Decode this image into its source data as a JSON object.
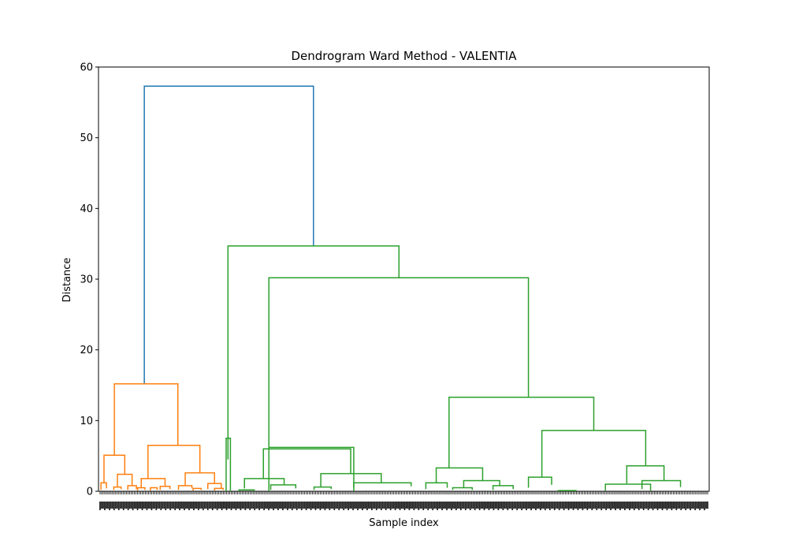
{
  "chart_data": {
    "type": "dendrogram",
    "title": "Dendrogram Ward Method - VALENTIA",
    "xlabel": "Sample index",
    "ylabel": "Distance",
    "ylim": [
      0,
      60
    ],
    "yticks": [
      "0",
      "10",
      "20",
      "30",
      "40",
      "50",
      "60"
    ],
    "grid": false,
    "colors": {
      "root": "#1f77b4",
      "cluster1": "#ff7f0e",
      "cluster2": "#2ca02c",
      "axis": "#000000"
    },
    "clusters": [
      {
        "name": "cluster1",
        "color": "#ff7f0e",
        "height": 15.2
      },
      {
        "name": "cluster2",
        "color": "#2ca02c",
        "height": 34.7
      }
    ],
    "merges": [
      {
        "color": "#1f77b4",
        "x_left": 7.5,
        "x_right": 35.2,
        "h_left": 15.2,
        "h_right": 34.7,
        "height": 57.3
      },
      {
        "color": "#2ca02c",
        "x_left": 21.2,
        "x_right": 49.2,
        "h_left": 4.5,
        "h_right": 30.2,
        "height": 34.7
      },
      {
        "color": "#2ca02c",
        "x_left": 27.9,
        "x_right": 70.4,
        "h_left": 6.2,
        "h_right": 13.3,
        "height": 30.2
      },
      {
        "color": "#2ca02c",
        "x_left": 57.4,
        "x_right": 81.1,
        "h_left": 3.3,
        "h_right": 8.6,
        "height": 13.3
      },
      {
        "color": "#2ca02c",
        "x_left": 72.6,
        "x_right": 89.6,
        "h_left": 2.0,
        "h_right": 3.6,
        "height": 8.6
      },
      {
        "color": "#2ca02c",
        "x_left": 27.9,
        "x_right": 41.8,
        "h_left": 0,
        "h_right": 0,
        "height": 6.2
      },
      {
        "color": "#2ca02c",
        "x_left": 27.0,
        "x_right": 41.3,
        "h_left": 1.8,
        "h_right": 2.5,
        "height": 6.0
      },
      {
        "color": "#2ca02c",
        "x_left": 55.3,
        "x_right": 62.9,
        "h_left": 1.2,
        "h_right": 1.5,
        "height": 3.3
      },
      {
        "color": "#2ca02c",
        "x_left": 86.5,
        "x_right": 92.6,
        "h_left": 1.1,
        "h_right": 1.5,
        "height": 3.6
      },
      {
        "color": "#2ca02c",
        "x_left": 36.4,
        "x_right": 46.3,
        "h_left": 0.6,
        "h_right": 1.2,
        "height": 2.5
      },
      {
        "color": "#2ca02c",
        "x_left": 70.4,
        "x_right": 74.2,
        "h_left": 0.5,
        "h_right": 0.9,
        "height": 2.0
      },
      {
        "color": "#2ca02c",
        "x_left": 23.9,
        "x_right": 30.4,
        "h_left": 0.4,
        "h_right": 0.9,
        "height": 1.8
      },
      {
        "color": "#2ca02c",
        "x_left": 41.8,
        "x_right": 51.2,
        "h_left": 0.5,
        "h_right": 0.7,
        "height": 1.2
      },
      {
        "color": "#2ca02c",
        "x_left": 83.0,
        "x_right": 90.4,
        "h_left": 0.1,
        "h_right": 0.1,
        "height": 1.0
      },
      {
        "color": "#2ca02c",
        "x_left": 59.8,
        "x_right": 65.7,
        "h_left": 0.5,
        "h_right": 0.8,
        "height": 1.5
      },
      {
        "color": "#2ca02c",
        "x_left": 89.0,
        "x_right": 95.3,
        "h_left": 0.3,
        "h_right": 0.6,
        "height": 1.5
      },
      {
        "color": "#2ca02c",
        "x_left": 53.6,
        "x_right": 57.1,
        "h_left": 0.3,
        "h_right": 0.5,
        "height": 1.2
      },
      {
        "color": "#2ca02c",
        "x_left": 28.2,
        "x_right": 32.3,
        "h_left": 0.2,
        "h_right": 0.4,
        "height": 0.9
      },
      {
        "color": "#2ca02c",
        "x_left": 64.6,
        "x_right": 67.9,
        "h_left": 0.2,
        "h_right": 0.3,
        "height": 0.8
      },
      {
        "color": "#2ca02c",
        "x_left": 35.3,
        "x_right": 38.1,
        "h_left": 0.2,
        "h_right": 0.3,
        "height": 0.6
      },
      {
        "color": "#2ca02c",
        "x_left": 58.0,
        "x_right": 61.2,
        "h_left": 0.2,
        "h_right": 0.2,
        "height": 0.5
      },
      {
        "color": "#2ca02c",
        "x_left": 75.2,
        "x_right": 78.3,
        "h_left": 0.1,
        "h_right": 0.1,
        "height": 0.1
      },
      {
        "color": "#2ca02c",
        "x_left": 23.0,
        "x_right": 25.5,
        "h_left": 0,
        "h_right": 0,
        "height": 0.2
      },
      {
        "color": "#2ca02c",
        "x_left": 20.9,
        "x_right": 21.6,
        "h_left": 0,
        "h_right": 0,
        "height": 7.5
      },
      {
        "color": "#ff7f0e",
        "x_left": 2.6,
        "x_right": 13.0,
        "h_left": 5.1,
        "h_right": 6.5,
        "height": 15.2
      },
      {
        "color": "#ff7f0e",
        "x_left": 0.9,
        "x_right": 4.3,
        "h_left": 1.2,
        "h_right": 2.4,
        "height": 5.1
      },
      {
        "color": "#ff7f0e",
        "x_left": 8.1,
        "x_right": 16.6,
        "h_left": 1.8,
        "h_right": 2.6,
        "height": 6.5
      },
      {
        "color": "#ff7f0e",
        "x_left": 3.1,
        "x_right": 5.5,
        "h_left": 0.6,
        "h_right": 0.8,
        "height": 2.4
      },
      {
        "color": "#ff7f0e",
        "x_left": 7.0,
        "x_right": 10.9,
        "h_left": 0.5,
        "h_right": 0.7,
        "height": 1.8
      },
      {
        "color": "#ff7f0e",
        "x_left": 14.2,
        "x_right": 19.0,
        "h_left": 0.8,
        "h_right": 1.1,
        "height": 2.6
      },
      {
        "color": "#ff7f0e",
        "x_left": 0.4,
        "x_right": 1.3,
        "h_left": 0.2,
        "h_right": 0.4,
        "height": 1.2
      },
      {
        "color": "#ff7f0e",
        "x_left": 17.9,
        "x_right": 20.1,
        "h_left": 0.3,
        "h_right": 0.4,
        "height": 1.1
      },
      {
        "color": "#ff7f0e",
        "x_left": 13.1,
        "x_right": 15.3,
        "h_left": 0.2,
        "h_right": 0.4,
        "height": 0.8
      },
      {
        "color": "#ff7f0e",
        "x_left": 2.5,
        "x_right": 3.7,
        "h_left": 0.2,
        "h_right": 0.3,
        "height": 0.6
      },
      {
        "color": "#ff7f0e",
        "x_left": 4.8,
        "x_right": 6.2,
        "h_left": 0.2,
        "h_right": 0.3,
        "height": 0.8
      },
      {
        "color": "#ff7f0e",
        "x_left": 10.1,
        "x_right": 11.7,
        "h_left": 0.2,
        "h_right": 0.3,
        "height": 0.7
      },
      {
        "color": "#ff7f0e",
        "x_left": 6.4,
        "x_right": 7.6,
        "h_left": 0.1,
        "h_right": 0.2,
        "height": 0.5
      },
      {
        "color": "#ff7f0e",
        "x_left": 8.5,
        "x_right": 9.6,
        "h_left": 0.1,
        "h_right": 0.2,
        "height": 0.5
      },
      {
        "color": "#ff7f0e",
        "x_left": 15.5,
        "x_right": 16.8,
        "h_left": 0.1,
        "h_right": 0.2,
        "height": 0.4
      },
      {
        "color": "#ff7f0e",
        "x_left": 19.0,
        "x_right": 20.4,
        "h_left": 0.1,
        "h_right": 0.2,
        "height": 0.4
      }
    ]
  }
}
